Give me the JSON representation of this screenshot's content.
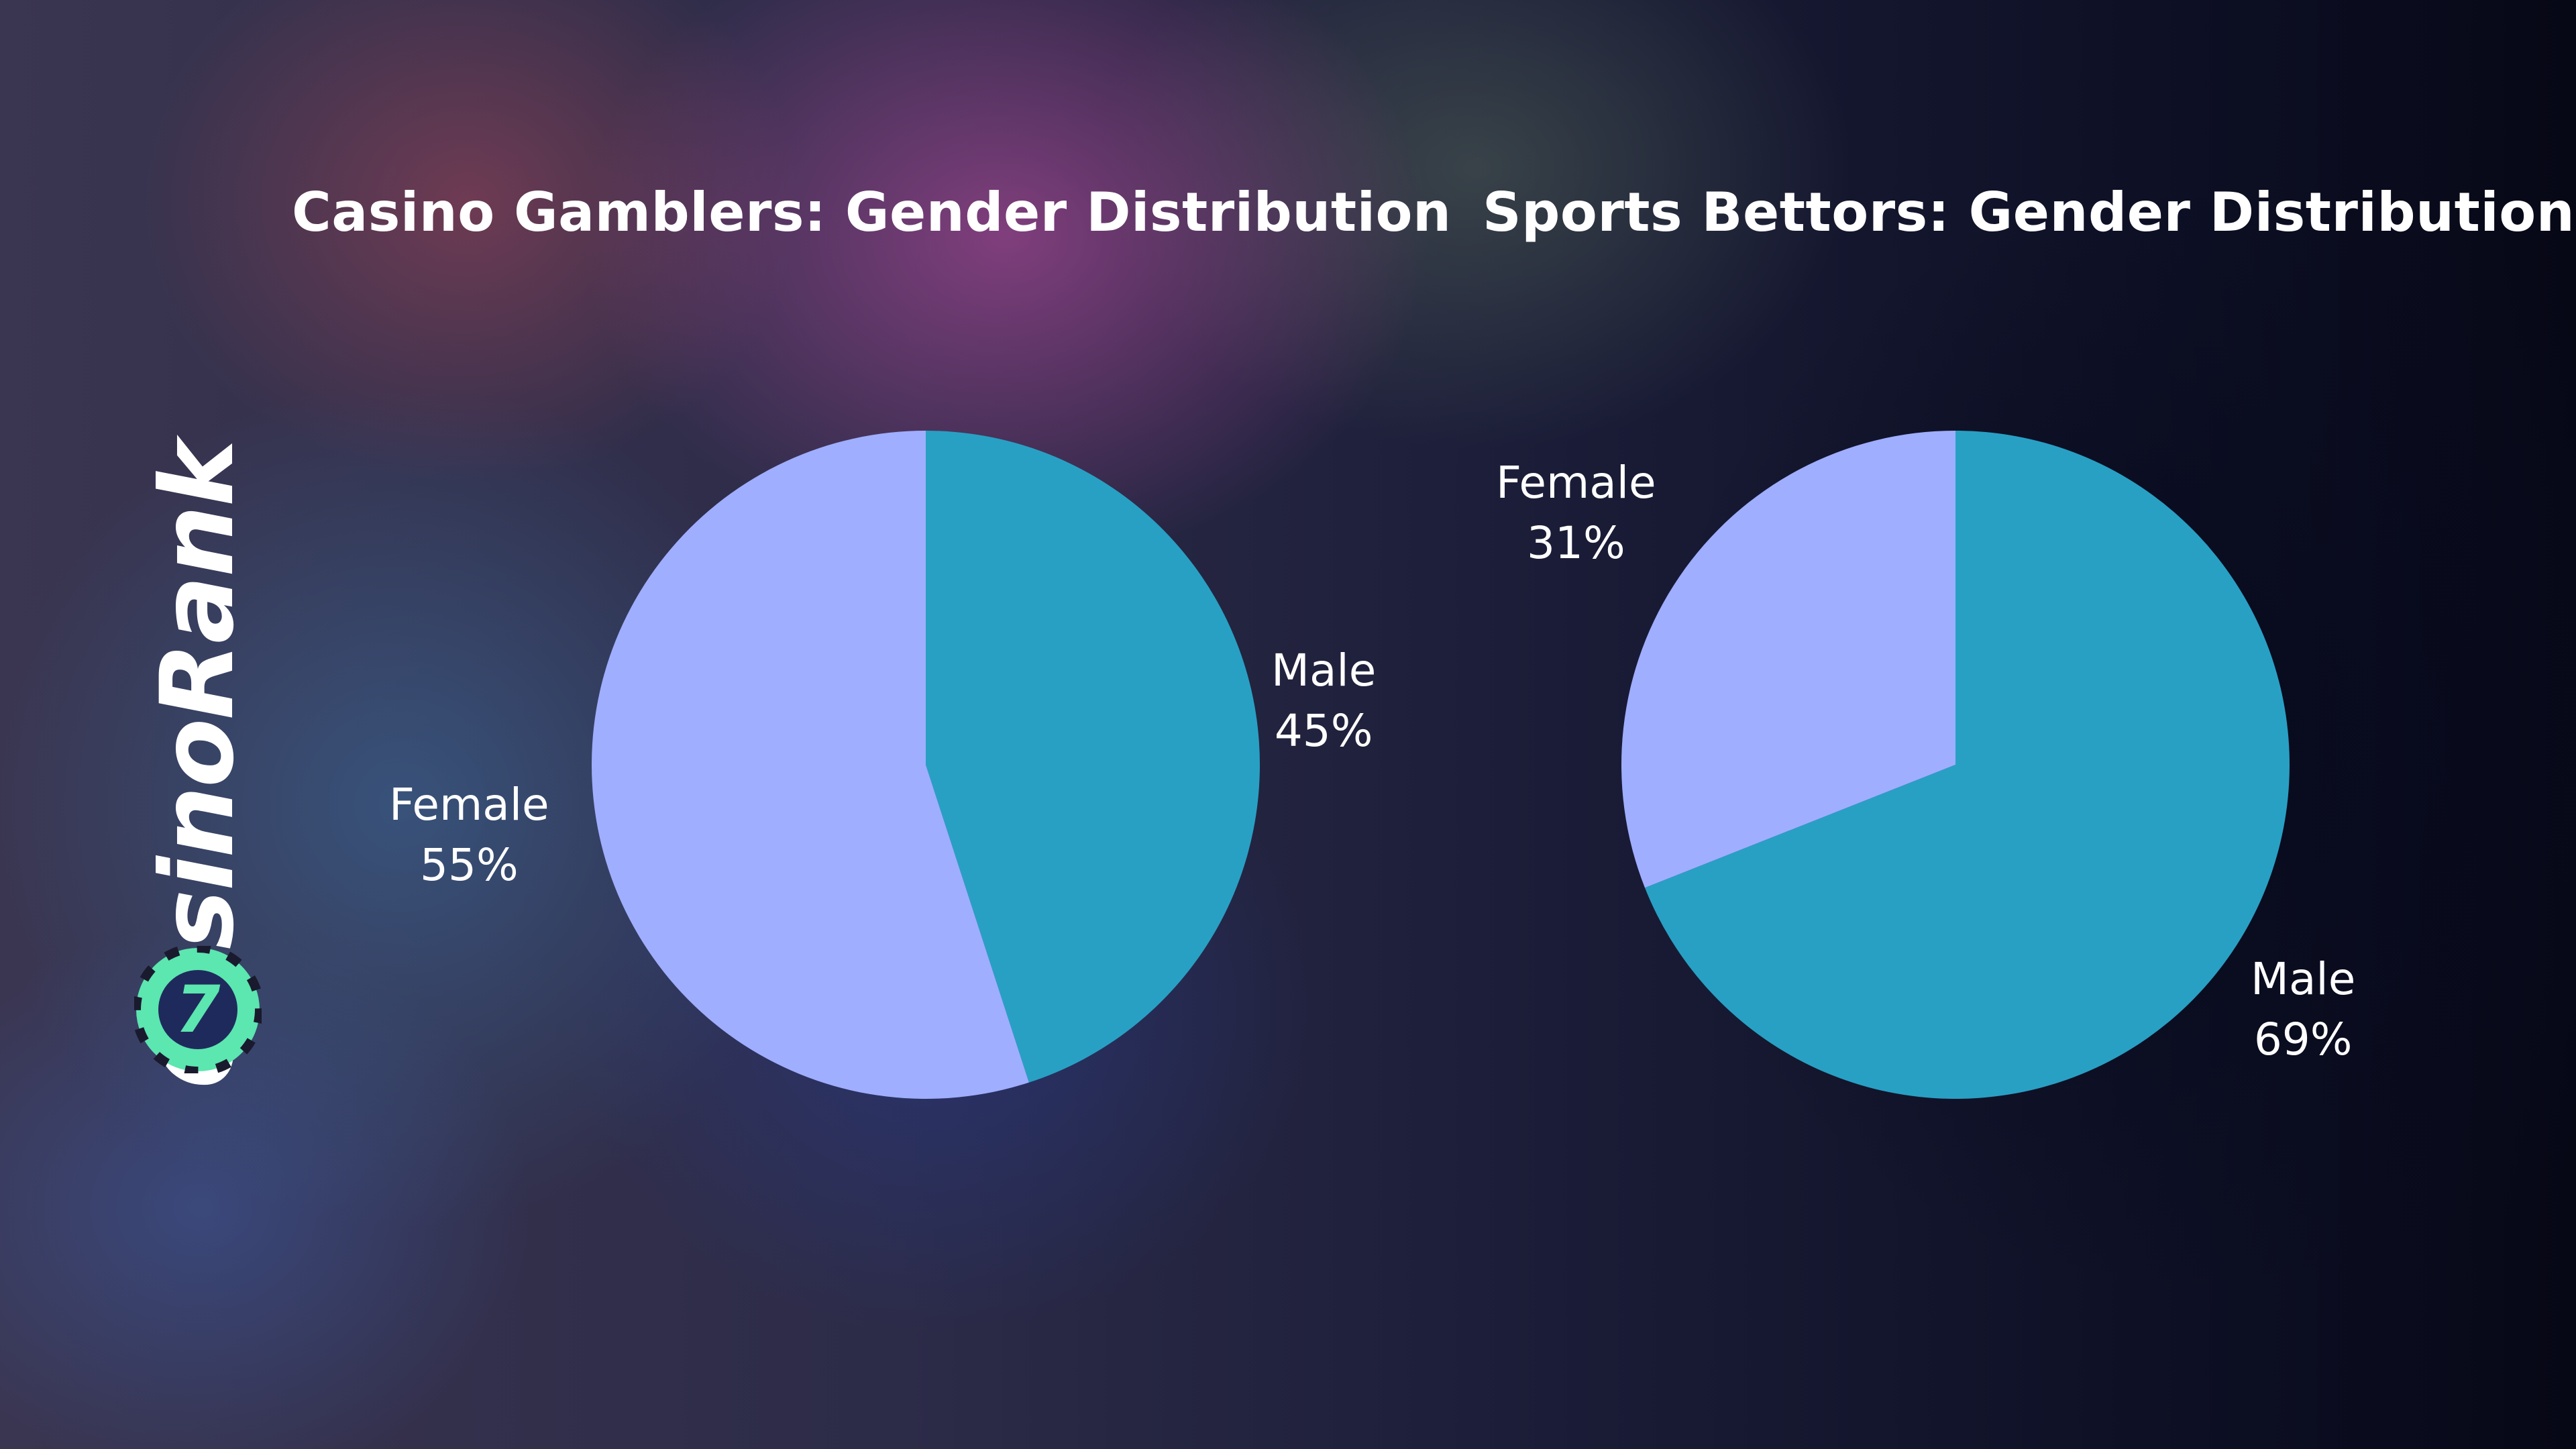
{
  "logo": {
    "text": "CasinoRank",
    "chip_label": "7",
    "icon": "casino-chip-icon"
  },
  "colors": {
    "male": "#28A0C4",
    "female": "#9FAEFF",
    "text": "#FFFFFF"
  },
  "chart_data": [
    {
      "type": "pie",
      "title": "Casino Gamblers: Gender Distribution",
      "slices": [
        {
          "label": "Male",
          "value": 45,
          "display": "45%",
          "color": "#28A0C4"
        },
        {
          "label": "Female",
          "value": 55,
          "display": "55%",
          "color": "#9FAEFF"
        }
      ],
      "start": "12 o'clock",
      "direction": "clockwise",
      "legend": "none"
    },
    {
      "type": "pie",
      "title": "Sports Bettors: Gender Distribution",
      "slices": [
        {
          "label": "Male",
          "value": 69,
          "display": "69%",
          "color": "#28A0C4"
        },
        {
          "label": "Female",
          "value": 31,
          "display": "31%",
          "color": "#9FAEFF"
        }
      ],
      "start": "12 o'clock",
      "direction": "clockwise",
      "legend": "none"
    }
  ]
}
